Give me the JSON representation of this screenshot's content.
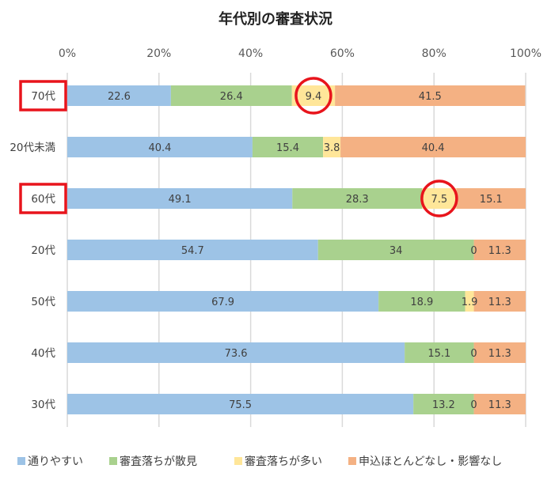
{
  "chart_data": {
    "type": "bar",
    "orientation": "horizontal",
    "stacked": "100%",
    "title": "年代別の審査状況",
    "xlabel": "",
    "ylabel": "",
    "xlim": [
      0,
      100
    ],
    "xticks": [
      "0%",
      "20%",
      "40%",
      "60%",
      "80%",
      "100%"
    ],
    "grid": true,
    "legend_position": "bottom",
    "categories": [
      "70代",
      "20代未満",
      "60代",
      "20代",
      "50代",
      "40代",
      "30代"
    ],
    "highlighted_categories": [
      "70代",
      "60代"
    ],
    "series": [
      {
        "name": "通りやすい",
        "color": "#9dc3e6",
        "values": [
          22.6,
          40.4,
          49.1,
          54.7,
          67.9,
          73.6,
          75.5
        ]
      },
      {
        "name": "審査落ちが散見",
        "color": "#a9d18e",
        "values": [
          26.4,
          15.4,
          28.3,
          34,
          18.9,
          15.1,
          13.2
        ]
      },
      {
        "name": "審査落ちが多い",
        "color": "#ffe699",
        "values": [
          9.4,
          3.8,
          7.5,
          0,
          1.9,
          0,
          0
        ]
      },
      {
        "name": "申込ほとんどなし・影響なし",
        "color": "#f4b183",
        "values": [
          41.5,
          40.4,
          15.1,
          11.3,
          11.3,
          11.3,
          11.3
        ]
      }
    ],
    "annotation_color": "#e8141c"
  }
}
